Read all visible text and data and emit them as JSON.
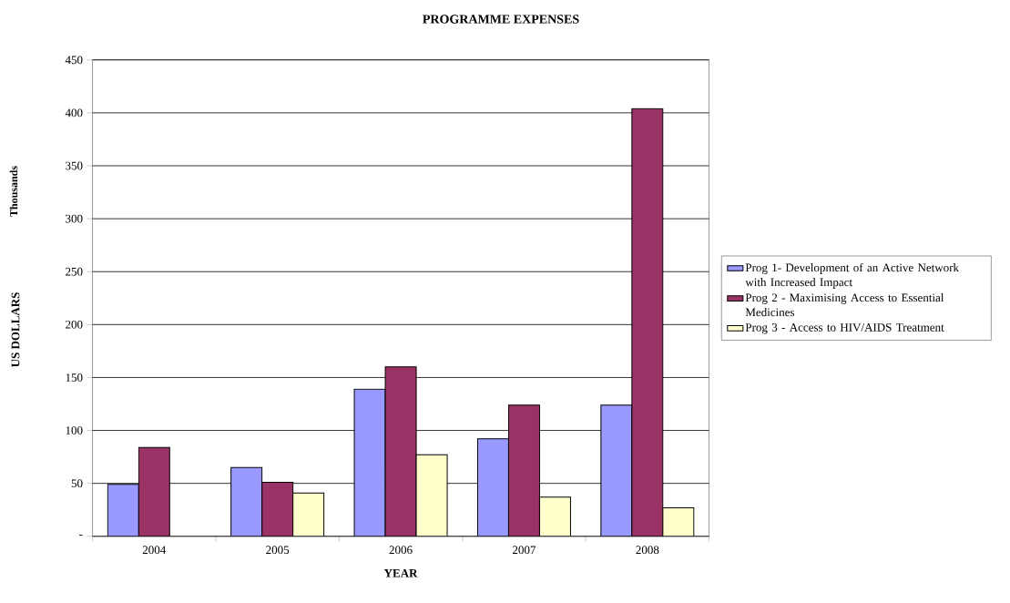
{
  "chart_data": {
    "type": "bar",
    "title": "PROGRAMME EXPENSES",
    "xlabel": "YEAR",
    "ylabel": "US DOLLARS",
    "annotations": [
      "Thousands"
    ],
    "categories": [
      "2004",
      "2005",
      "2006",
      "2007",
      "2008"
    ],
    "series": [
      {
        "name": "Prog 1- Development of an Active Network with Increased Impact",
        "color": "#9999ff",
        "values": [
          49,
          65,
          139,
          92,
          124
        ]
      },
      {
        "name": "Prog 2 - Maximising Access to Essential Medicines",
        "color": "#993366",
        "values": [
          84,
          51,
          160,
          124,
          404
        ]
      },
      {
        "name": "Prog 3 - Access to HIV/AIDS Treatment",
        "color": "#ffffcc",
        "values": [
          null,
          41,
          77,
          37,
          27
        ]
      }
    ],
    "ylim": [
      0,
      450
    ],
    "yticks": [
      {
        "value": 0,
        "label": "-"
      },
      50,
      100,
      150,
      200,
      250,
      300,
      350,
      400,
      450
    ],
    "grid": "y",
    "legend": "right"
  }
}
